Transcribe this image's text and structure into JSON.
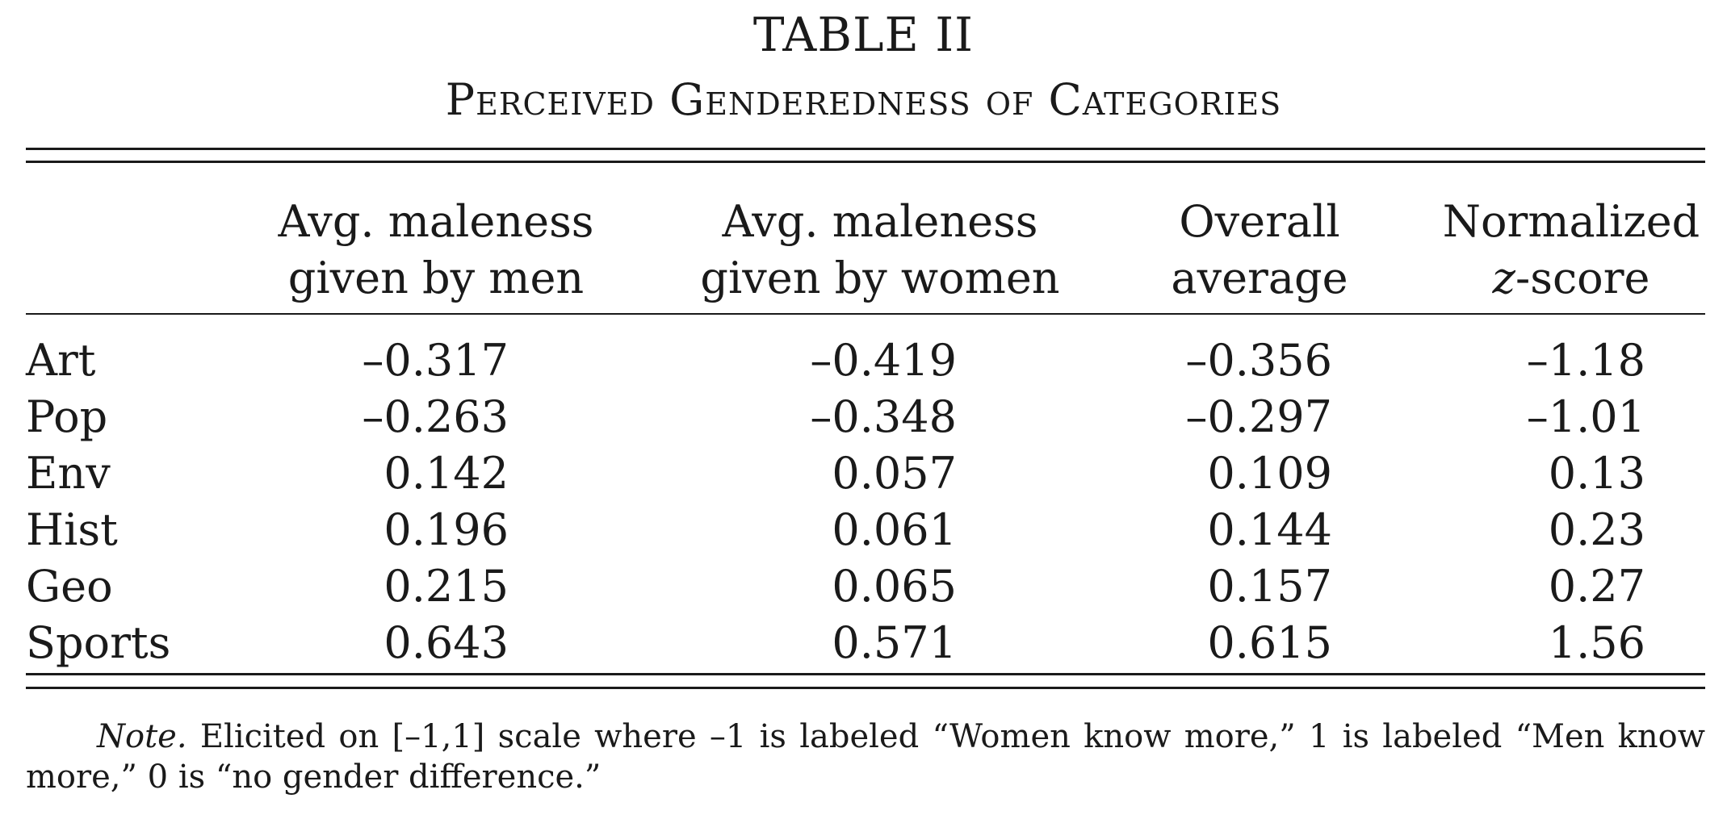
{
  "table": {
    "number": "TABLE II",
    "title": "Perceived Genderedness of Categories",
    "columns": [
      {
        "line1": "Avg. maleness",
        "line2": "given by men",
        "line2_italic_prefix": ""
      },
      {
        "line1": "Avg. maleness",
        "line2": "given by women",
        "line2_italic_prefix": ""
      },
      {
        "line1": "Overall",
        "line2": "average",
        "line2_italic_prefix": ""
      },
      {
        "line1": "Normalized",
        "line2": "-score",
        "line2_italic_prefix": "z"
      }
    ],
    "rows": [
      {
        "label": "Art",
        "values": [
          "–0.317",
          "–0.419",
          "–0.356",
          "–1.18"
        ]
      },
      {
        "label": "Pop",
        "values": [
          "–0.263",
          "–0.348",
          "–0.297",
          "–1.01"
        ]
      },
      {
        "label": "Env",
        "values": [
          "0.142",
          "0.057",
          "0.109",
          "0.13"
        ]
      },
      {
        "label": "Hist",
        "values": [
          "0.196",
          "0.061",
          "0.144",
          "0.23"
        ]
      },
      {
        "label": "Geo",
        "values": [
          "0.215",
          "0.065",
          "0.157",
          "0.27"
        ]
      },
      {
        "label": "Sports",
        "values": [
          "0.643",
          "0.571",
          "0.615",
          "1.56"
        ]
      }
    ],
    "note_label": "Note.",
    "note_text": " Elicited on [–1,1] scale where –1 is labeled “Women know more,” 1 is labeled “Men know more,” 0 is “no gender difference.”"
  }
}
